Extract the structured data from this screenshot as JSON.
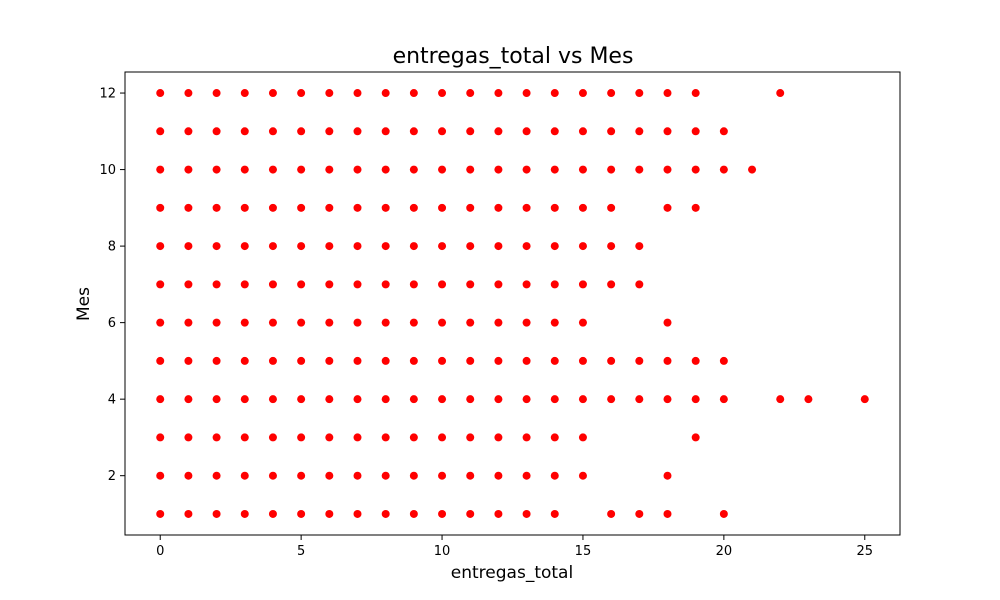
{
  "chart_data": {
    "type": "scatter",
    "title": "entregas_total vs Mes",
    "xlabel": "entregas_total",
    "ylabel": "Mes",
    "xlim": [
      -1.25,
      26.25
    ],
    "ylim": [
      0.45,
      12.55
    ],
    "xticks": [
      0,
      5,
      10,
      15,
      20,
      25
    ],
    "yticks": [
      2,
      4,
      6,
      8,
      10,
      12
    ],
    "grid": false,
    "color": "#ff0000",
    "series": [
      {
        "points": [
          [
            0,
            12
          ],
          [
            1,
            12
          ],
          [
            2,
            12
          ],
          [
            3,
            12
          ],
          [
            4,
            12
          ],
          [
            5,
            12
          ],
          [
            6,
            12
          ],
          [
            7,
            12
          ],
          [
            8,
            12
          ],
          [
            9,
            12
          ],
          [
            10,
            12
          ],
          [
            11,
            12
          ],
          [
            12,
            12
          ],
          [
            13,
            12
          ],
          [
            14,
            12
          ],
          [
            15,
            12
          ],
          [
            16,
            12
          ],
          [
            17,
            12
          ],
          [
            18,
            12
          ],
          [
            19,
            12
          ],
          [
            22,
            12
          ],
          [
            0,
            11
          ],
          [
            1,
            11
          ],
          [
            2,
            11
          ],
          [
            3,
            11
          ],
          [
            4,
            11
          ],
          [
            5,
            11
          ],
          [
            6,
            11
          ],
          [
            7,
            11
          ],
          [
            8,
            11
          ],
          [
            9,
            11
          ],
          [
            10,
            11
          ],
          [
            11,
            11
          ],
          [
            12,
            11
          ],
          [
            13,
            11
          ],
          [
            14,
            11
          ],
          [
            15,
            11
          ],
          [
            16,
            11
          ],
          [
            17,
            11
          ],
          [
            18,
            11
          ],
          [
            19,
            11
          ],
          [
            20,
            11
          ],
          [
            0,
            10
          ],
          [
            1,
            10
          ],
          [
            2,
            10
          ],
          [
            3,
            10
          ],
          [
            4,
            10
          ],
          [
            5,
            10
          ],
          [
            6,
            10
          ],
          [
            7,
            10
          ],
          [
            8,
            10
          ],
          [
            9,
            10
          ],
          [
            10,
            10
          ],
          [
            11,
            10
          ],
          [
            12,
            10
          ],
          [
            13,
            10
          ],
          [
            14,
            10
          ],
          [
            15,
            10
          ],
          [
            16,
            10
          ],
          [
            17,
            10
          ],
          [
            18,
            10
          ],
          [
            19,
            10
          ],
          [
            20,
            10
          ],
          [
            21,
            10
          ],
          [
            0,
            9
          ],
          [
            1,
            9
          ],
          [
            2,
            9
          ],
          [
            3,
            9
          ],
          [
            4,
            9
          ],
          [
            5,
            9
          ],
          [
            6,
            9
          ],
          [
            7,
            9
          ],
          [
            8,
            9
          ],
          [
            9,
            9
          ],
          [
            10,
            9
          ],
          [
            11,
            9
          ],
          [
            12,
            9
          ],
          [
            13,
            9
          ],
          [
            14,
            9
          ],
          [
            15,
            9
          ],
          [
            16,
            9
          ],
          [
            18,
            9
          ],
          [
            19,
            9
          ],
          [
            0,
            8
          ],
          [
            1,
            8
          ],
          [
            2,
            8
          ],
          [
            3,
            8
          ],
          [
            4,
            8
          ],
          [
            5,
            8
          ],
          [
            6,
            8
          ],
          [
            7,
            8
          ],
          [
            8,
            8
          ],
          [
            9,
            8
          ],
          [
            10,
            8
          ],
          [
            11,
            8
          ],
          [
            12,
            8
          ],
          [
            13,
            8
          ],
          [
            14,
            8
          ],
          [
            15,
            8
          ],
          [
            16,
            8
          ],
          [
            17,
            8
          ],
          [
            0,
            7
          ],
          [
            1,
            7
          ],
          [
            2,
            7
          ],
          [
            3,
            7
          ],
          [
            4,
            7
          ],
          [
            5,
            7
          ],
          [
            6,
            7
          ],
          [
            7,
            7
          ],
          [
            8,
            7
          ],
          [
            9,
            7
          ],
          [
            10,
            7
          ],
          [
            11,
            7
          ],
          [
            12,
            7
          ],
          [
            13,
            7
          ],
          [
            14,
            7
          ],
          [
            15,
            7
          ],
          [
            16,
            7
          ],
          [
            17,
            7
          ],
          [
            0,
            6
          ],
          [
            1,
            6
          ],
          [
            2,
            6
          ],
          [
            3,
            6
          ],
          [
            4,
            6
          ],
          [
            5,
            6
          ],
          [
            6,
            6
          ],
          [
            7,
            6
          ],
          [
            8,
            6
          ],
          [
            9,
            6
          ],
          [
            10,
            6
          ],
          [
            11,
            6
          ],
          [
            12,
            6
          ],
          [
            13,
            6
          ],
          [
            14,
            6
          ],
          [
            15,
            6
          ],
          [
            18,
            6
          ],
          [
            0,
            5
          ],
          [
            1,
            5
          ],
          [
            2,
            5
          ],
          [
            3,
            5
          ],
          [
            4,
            5
          ],
          [
            5,
            5
          ],
          [
            6,
            5
          ],
          [
            7,
            5
          ],
          [
            8,
            5
          ],
          [
            9,
            5
          ],
          [
            10,
            5
          ],
          [
            11,
            5
          ],
          [
            12,
            5
          ],
          [
            13,
            5
          ],
          [
            14,
            5
          ],
          [
            15,
            5
          ],
          [
            16,
            5
          ],
          [
            17,
            5
          ],
          [
            18,
            5
          ],
          [
            19,
            5
          ],
          [
            20,
            5
          ],
          [
            0,
            4
          ],
          [
            1,
            4
          ],
          [
            2,
            4
          ],
          [
            3,
            4
          ],
          [
            4,
            4
          ],
          [
            5,
            4
          ],
          [
            6,
            4
          ],
          [
            7,
            4
          ],
          [
            8,
            4
          ],
          [
            9,
            4
          ],
          [
            10,
            4
          ],
          [
            11,
            4
          ],
          [
            12,
            4
          ],
          [
            13,
            4
          ],
          [
            14,
            4
          ],
          [
            15,
            4
          ],
          [
            16,
            4
          ],
          [
            17,
            4
          ],
          [
            18,
            4
          ],
          [
            19,
            4
          ],
          [
            20,
            4
          ],
          [
            22,
            4
          ],
          [
            23,
            4
          ],
          [
            25,
            4
          ],
          [
            0,
            3
          ],
          [
            1,
            3
          ],
          [
            2,
            3
          ],
          [
            3,
            3
          ],
          [
            4,
            3
          ],
          [
            5,
            3
          ],
          [
            6,
            3
          ],
          [
            7,
            3
          ],
          [
            8,
            3
          ],
          [
            9,
            3
          ],
          [
            10,
            3
          ],
          [
            11,
            3
          ],
          [
            12,
            3
          ],
          [
            13,
            3
          ],
          [
            14,
            3
          ],
          [
            15,
            3
          ],
          [
            19,
            3
          ],
          [
            0,
            2
          ],
          [
            1,
            2
          ],
          [
            2,
            2
          ],
          [
            3,
            2
          ],
          [
            4,
            2
          ],
          [
            5,
            2
          ],
          [
            6,
            2
          ],
          [
            7,
            2
          ],
          [
            8,
            2
          ],
          [
            9,
            2
          ],
          [
            10,
            2
          ],
          [
            11,
            2
          ],
          [
            12,
            2
          ],
          [
            13,
            2
          ],
          [
            14,
            2
          ],
          [
            15,
            2
          ],
          [
            18,
            2
          ],
          [
            0,
            1
          ],
          [
            1,
            1
          ],
          [
            2,
            1
          ],
          [
            3,
            1
          ],
          [
            4,
            1
          ],
          [
            5,
            1
          ],
          [
            6,
            1
          ],
          [
            7,
            1
          ],
          [
            8,
            1
          ],
          [
            9,
            1
          ],
          [
            10,
            1
          ],
          [
            11,
            1
          ],
          [
            12,
            1
          ],
          [
            13,
            1
          ],
          [
            14,
            1
          ],
          [
            16,
            1
          ],
          [
            17,
            1
          ],
          [
            18,
            1
          ],
          [
            20,
            1
          ]
        ]
      }
    ]
  }
}
